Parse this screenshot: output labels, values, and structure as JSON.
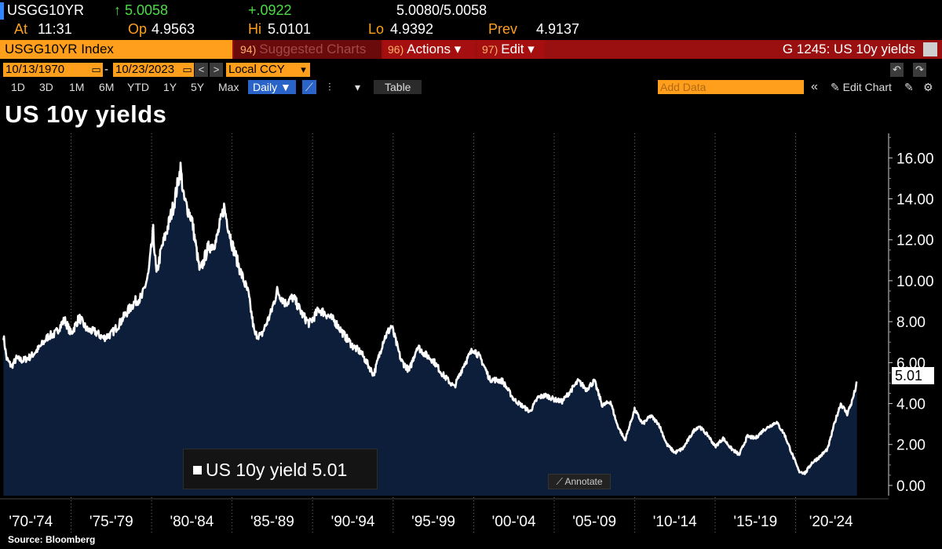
{
  "header": {
    "ticker": "USGG10YR",
    "last": "↑ 5.0058",
    "change": "+.0922",
    "bid_ask": "5.0080/5.0058",
    "at_label": "At",
    "at_value": "11:31",
    "op_label": "Op",
    "op_value": "4.9563",
    "hi_label": "Hi",
    "hi_value": "5.0101",
    "lo_label": "Lo",
    "lo_value": "4.9392",
    "prev_label": "Prev",
    "prev_value": "4.9137"
  },
  "toolbar": {
    "security": "USGG10YR Index",
    "suggested_num": "94)",
    "suggested": "Suggested Charts",
    "actions_num": "96)",
    "actions": "Actions ▾",
    "edit_num": "97)",
    "edit": "Edit ▾",
    "graph_name": "G 1245: US 10y yields"
  },
  "range": {
    "start": "10/13/1970",
    "dash": "-",
    "end": "10/23/2023",
    "prev": "<",
    "next": ">",
    "currency": "Local CCY",
    "dropdown": "▾"
  },
  "periods": [
    "1D",
    "3D",
    "1M",
    "6M",
    "YTD",
    "1Y",
    "5Y",
    "Max"
  ],
  "controls": {
    "frequency": "Daily ▼",
    "line_icon": "📈",
    "bar_icon": "⫶",
    "more": "▾",
    "table": "Table",
    "add_data_placeholder": "Add Data",
    "collapse": "«",
    "edit_chart": "✎ Edit Chart",
    "undo": "↶",
    "redo": "↷"
  },
  "annotate_label": "⟋ Annotate",
  "source": "Source: Bloomberg",
  "chart_data": {
    "type": "area",
    "title": "US 10y yields",
    "legend": "US 10y yield 5.01",
    "last_value_label": "5.01",
    "x_tick_labels": [
      "'70-'74",
      "'75-'79",
      "'80-'84",
      "'85-'89",
      "'90-'94",
      "'95-'99",
      "'00-'04",
      "'05-'09",
      "'10-'14",
      "'15-'19",
      "'20-'24"
    ],
    "y_tick_labels": [
      "16.00",
      "14.00",
      "12.00",
      "10.00",
      "8.00",
      "6.00",
      "4.00",
      "2.00",
      "0.00"
    ],
    "ylim": [
      -0.5,
      17.2
    ],
    "xlim": [
      1970.78,
      2024.8
    ],
    "line_color": "#ffffff",
    "fill_color": "#0d1e3a",
    "x": [
      1970.8,
      1971.0,
      1971.3,
      1971.6,
      1972.0,
      1972.5,
      1973.0,
      1973.6,
      1974.0,
      1974.6,
      1975.0,
      1975.5,
      1976.0,
      1976.5,
      1977.0,
      1977.5,
      1978.0,
      1978.5,
      1979.0,
      1979.4,
      1979.8,
      1980.1,
      1980.3,
      1980.6,
      1981.0,
      1981.4,
      1981.8,
      1982.0,
      1982.5,
      1983.0,
      1983.5,
      1984.0,
      1984.5,
      1985.0,
      1985.5,
      1986.0,
      1986.4,
      1986.8,
      1987.4,
      1987.8,
      1988.3,
      1988.8,
      1989.4,
      1989.8,
      1990.4,
      1990.8,
      1991.4,
      1992.0,
      1992.5,
      1993.0,
      1993.8,
      1994.4,
      1994.9,
      1995.5,
      1996.0,
      1996.5,
      1997.0,
      1997.5,
      1998.0,
      1998.8,
      1999.4,
      2000.0,
      2000.5,
      2001.0,
      2001.8,
      2002.5,
      2003.0,
      2003.5,
      2004.0,
      2004.5,
      2005.0,
      2005.5,
      2006.0,
      2006.5,
      2007.0,
      2007.5,
      2008.0,
      2008.5,
      2008.9,
      2009.4,
      2010.0,
      2010.5,
      2011.0,
      2011.5,
      2012.0,
      2012.5,
      2013.0,
      2013.7,
      2014.0,
      2014.6,
      2015.0,
      2015.5,
      2016.0,
      2016.5,
      2017.0,
      2017.5,
      2018.0,
      2018.8,
      2019.3,
      2019.8,
      2020.2,
      2020.6,
      2021.0,
      2021.5,
      2022.0,
      2022.4,
      2022.8,
      2023.2,
      2023.5,
      2023.81
    ],
    "y": [
      7.3,
      6.2,
      5.8,
      6.2,
      6.1,
      6.3,
      6.7,
      7.3,
      7.4,
      8.1,
      7.4,
      8.2,
      7.6,
      7.5,
      7.2,
      7.4,
      7.9,
      8.5,
      9.0,
      9.2,
      10.3,
      12.4,
      10.3,
      11.5,
      12.6,
      13.8,
      15.5,
      14.0,
      13.0,
      10.4,
      11.6,
      11.9,
      13.6,
      11.8,
      10.5,
      9.4,
      7.4,
      7.3,
      8.4,
      9.5,
      8.9,
      9.2,
      8.3,
      7.9,
      8.6,
      8.4,
      8.0,
      7.3,
      6.8,
      6.5,
      5.4,
      7.1,
      7.8,
      6.1,
      5.6,
      6.8,
      6.4,
      6.1,
      5.5,
      4.8,
      5.9,
      6.7,
      6.1,
      5.2,
      5.1,
      4.2,
      3.9,
      3.6,
      4.3,
      4.4,
      4.2,
      4.1,
      4.6,
      5.1,
      4.7,
      5.1,
      3.9,
      4.1,
      3.0,
      2.2,
      3.7,
      3.0,
      3.4,
      3.0,
      2.0,
      1.6,
      1.8,
      2.7,
      2.9,
      2.4,
      1.9,
      2.3,
      1.8,
      1.5,
      2.4,
      2.3,
      2.7,
      3.1,
      2.5,
      1.5,
      0.7,
      0.6,
      1.1,
      1.4,
      1.8,
      3.0,
      4.0,
      3.5,
      4.1,
      5.01
    ]
  }
}
